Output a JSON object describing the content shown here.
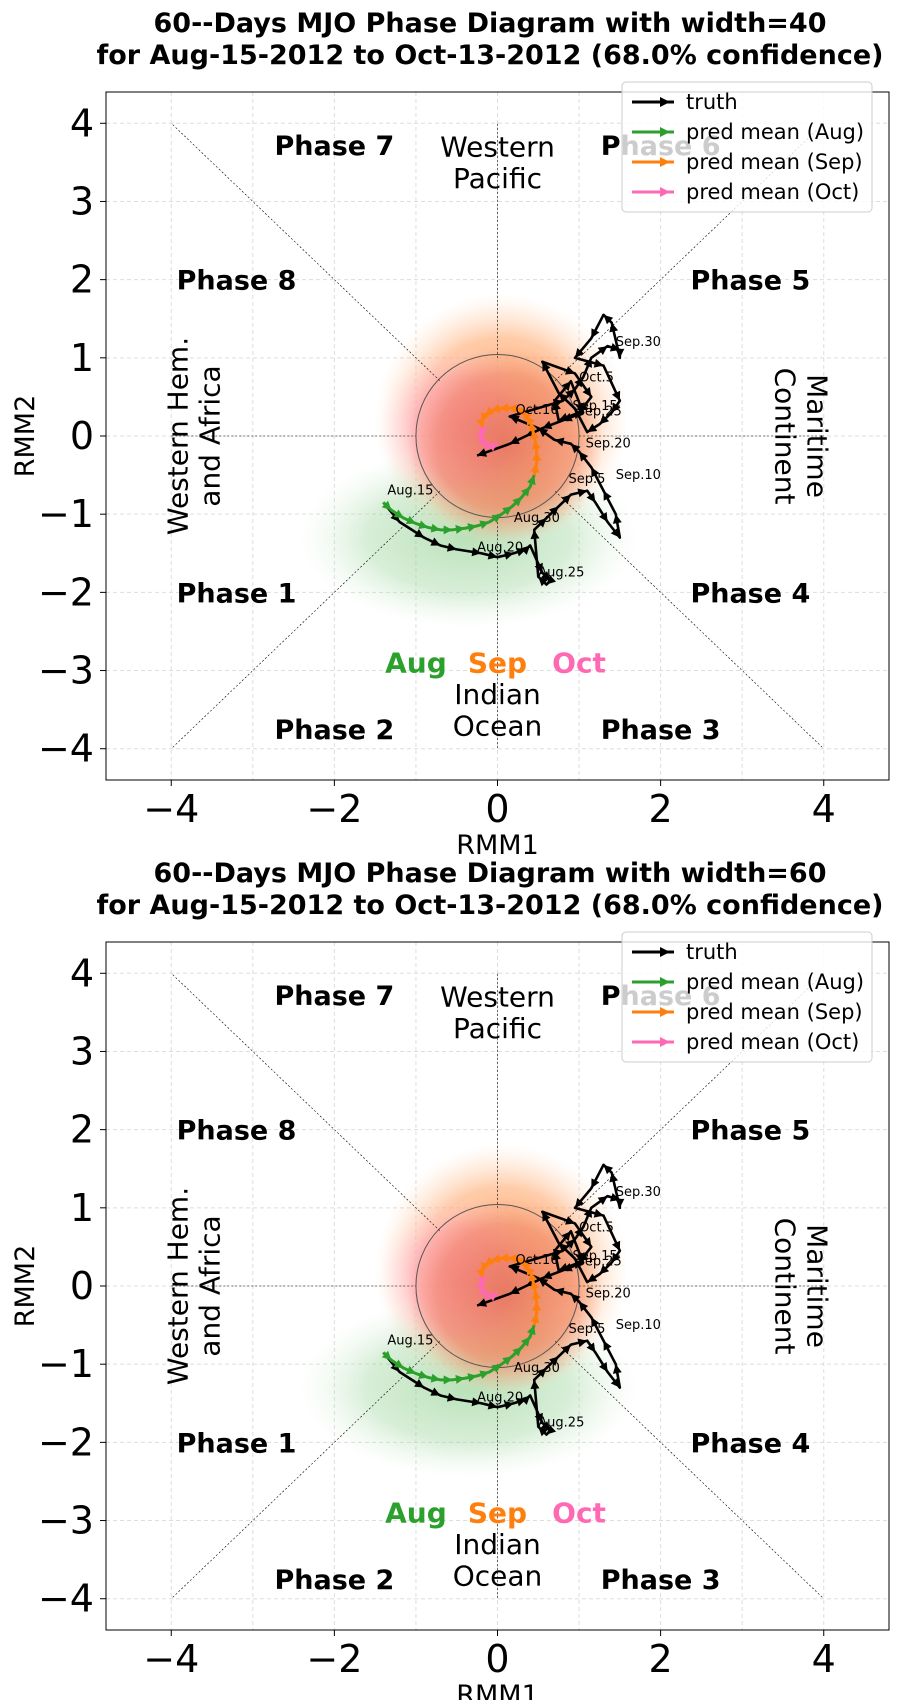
{
  "colors": {
    "truth": "#000000",
    "aug": "#2ca02c",
    "sep": "#ff7f0e",
    "oct": "#ff69b4"
  },
  "chart_data": [
    {
      "type": "line",
      "title_line1": "60--Days MJO Phase Diagram with width=40",
      "title_line2": "for Aug-15-2012 to Oct-13-2012 (68.0% confidence)",
      "xlabel": "RMM1",
      "ylabel": "RMM2",
      "xlim": [
        -4.8,
        4.8
      ],
      "ylim": [
        -4.4,
        4.4
      ],
      "xticks": [
        -4,
        -2,
        0,
        2,
        4
      ],
      "yticks": [
        -4,
        -3,
        -2,
        -1,
        0,
        1,
        2,
        3,
        4
      ],
      "xtick_labels": [
        "−4",
        "−2",
        "0",
        "2",
        "4"
      ],
      "ytick_labels": [
        "−4",
        "−3",
        "−2",
        "−1",
        "0",
        "1",
        "2",
        "3",
        "4"
      ],
      "grid": true,
      "legend_position": "top-right",
      "legend": [
        "truth",
        "pred mean (Aug)",
        "pred mean (Sep)",
        "pred mean (Oct)"
      ],
      "phases": [
        {
          "label": "Phase 1",
          "x": -3.2,
          "y": -2.0
        },
        {
          "label": "Phase 2",
          "x": -2.0,
          "y": -3.75
        },
        {
          "label": "Phase 3",
          "x": 2.0,
          "y": -3.75
        },
        {
          "label": "Phase 4",
          "x": 3.1,
          "y": -2.0
        },
        {
          "label": "Phase 5",
          "x": 3.1,
          "y": 2.0
        },
        {
          "label": "Phase 6",
          "x": 2.0,
          "y": 3.72
        },
        {
          "label": "Phase 7",
          "x": -2.0,
          "y": 3.72
        },
        {
          "label": "Phase 8",
          "x": -3.2,
          "y": 2.0
        }
      ],
      "regions": {
        "top_line1": "Western",
        "top_line2": "Pacific",
        "bottom_line1": "Indian",
        "bottom_line2": "Ocean",
        "left_line1": "Western Hem.",
        "left_line2": "and Africa",
        "right_line1": "Maritime",
        "right_line2": "Continent"
      },
      "month_labels": [
        "Aug",
        "Sep",
        "Oct"
      ],
      "series": [
        {
          "name": "truth",
          "x": [
            -1.4,
            -1.2,
            -0.9,
            -0.7,
            -0.5,
            -0.2,
            0.0,
            0.2,
            0.35,
            0.4,
            0.55,
            0.65,
            0.6,
            0.5,
            0.45,
            0.6,
            0.75,
            0.9,
            1.1,
            1.2,
            1.35,
            1.5,
            1.45,
            1.3,
            1.15,
            1.0,
            0.9,
            0.7,
            0.5,
            0.15,
            0.8,
            0.95,
            1.05,
            1.15,
            1.35,
            1.5,
            1.5,
            1.4,
            1.3,
            1.15,
            0.95,
            1.3,
            1.5,
            1.4,
            1.25,
            1.1,
            0.95,
            0.75,
            0.55,
            0.95,
            1.15,
            1.0,
            0.75,
            0.7,
            0.9,
            1.05,
            0.8,
            0.55,
            0.35,
            0.15,
            -0.25
          ],
          "y": [
            -0.85,
            -1.1,
            -1.3,
            -1.4,
            -1.45,
            -1.5,
            -1.55,
            -1.5,
            -1.45,
            -1.4,
            -1.75,
            -1.85,
            -1.9,
            -1.8,
            -1.2,
            -1.05,
            -0.9,
            -0.75,
            -0.7,
            -0.85,
            -1.1,
            -1.3,
            -1.0,
            -0.7,
            -0.4,
            -0.2,
            -0.1,
            -0.05,
            0.1,
            0.25,
            0.45,
            0.6,
            0.75,
            1.0,
            1.15,
            1.1,
            1.0,
            1.45,
            1.55,
            1.25,
            1.0,
            0.9,
            0.45,
            0.3,
            0.15,
            0.05,
            0.35,
            0.55,
            0.95,
            0.8,
            0.5,
            0.3,
            0.2,
            0.45,
            0.7,
            0.3,
            0.2,
            0.1,
            0.0,
            -0.1,
            -0.25
          ]
        },
        {
          "name": "pred mean (Aug)",
          "x": [
            -1.4,
            -1.3,
            -1.15,
            -1.0,
            -0.85,
            -0.7,
            -0.55,
            -0.4,
            -0.25,
            -0.1,
            0.05,
            0.18,
            0.3,
            0.4,
            0.45
          ],
          "y": [
            -0.85,
            -0.95,
            -1.05,
            -1.12,
            -1.17,
            -1.2,
            -1.2,
            -1.18,
            -1.15,
            -1.1,
            -1.0,
            -0.9,
            -0.78,
            -0.65,
            -0.5
          ]
        },
        {
          "name": "pred mean (Sep)",
          "x": [
            0.45,
            0.48,
            0.48,
            0.46,
            0.43,
            0.4,
            0.35,
            0.3,
            0.22,
            0.12,
            0.02,
            -0.08,
            -0.16,
            -0.2,
            -0.18
          ],
          "y": [
            -0.5,
            -0.35,
            -0.2,
            -0.05,
            0.08,
            0.18,
            0.26,
            0.32,
            0.35,
            0.36,
            0.35,
            0.32,
            0.26,
            0.18,
            0.1
          ]
        },
        {
          "name": "pred mean (Oct)",
          "x": [
            -0.18,
            -0.2,
            -0.18,
            -0.12,
            -0.05,
            0.0
          ],
          "y": [
            0.1,
            0.0,
            -0.07,
            -0.12,
            -0.12,
            -0.08
          ]
        }
      ],
      "date_labels": [
        {
          "text": "Aug.15",
          "x": -1.35,
          "y": -0.75
        },
        {
          "text": "Aug.20",
          "x": -0.25,
          "y": -1.48
        },
        {
          "text": "Aug.25",
          "x": 0.5,
          "y": -1.8
        },
        {
          "text": "Aug.30",
          "x": 0.2,
          "y": -1.1
        },
        {
          "text": "Sep.5",
          "x": 0.87,
          "y": -0.6
        },
        {
          "text": "Sep.10",
          "x": 1.45,
          "y": -0.55
        },
        {
          "text": "Sep.15",
          "x": 0.92,
          "y": 0.33
        },
        {
          "text": "Sep.20",
          "x": 1.08,
          "y": -0.15
        },
        {
          "text": "Sep.25",
          "x": 0.97,
          "y": 0.26
        },
        {
          "text": "Sep.30",
          "x": 1.45,
          "y": 1.15
        },
        {
          "text": "Oct.5",
          "x": 1.0,
          "y": 0.7
        },
        {
          "text": "Oct.10",
          "x": 0.22,
          "y": 0.28
        }
      ]
    },
    {
      "type": "line",
      "title_line1": "60--Days MJO Phase Diagram with width=60",
      "title_line2": "for Aug-15-2012 to Oct-13-2012 (68.0% confidence)",
      "xlabel": "RMM1",
      "ylabel": "RMM2",
      "xlim": [
        -4.8,
        4.8
      ],
      "ylim": [
        -4.4,
        4.4
      ],
      "xticks": [
        -4,
        -2,
        0,
        2,
        4
      ],
      "yticks": [
        -4,
        -3,
        -2,
        -1,
        0,
        1,
        2,
        3,
        4
      ],
      "xtick_labels": [
        "−4",
        "−2",
        "0",
        "2",
        "4"
      ],
      "ytick_labels": [
        "−4",
        "−3",
        "−2",
        "−1",
        "0",
        "1",
        "2",
        "3",
        "4"
      ],
      "grid": true,
      "legend_position": "top-right",
      "legend": [
        "truth",
        "pred mean (Aug)",
        "pred mean (Sep)",
        "pred mean (Oct)"
      ],
      "phases": [
        {
          "label": "Phase 1",
          "x": -3.2,
          "y": -2.0
        },
        {
          "label": "Phase 2",
          "x": -2.0,
          "y": -3.75
        },
        {
          "label": "Phase 3",
          "x": 2.0,
          "y": -3.75
        },
        {
          "label": "Phase 4",
          "x": 3.1,
          "y": -2.0
        },
        {
          "label": "Phase 5",
          "x": 3.1,
          "y": 2.0
        },
        {
          "label": "Phase 6",
          "x": 2.0,
          "y": 3.72
        },
        {
          "label": "Phase 7",
          "x": -2.0,
          "y": 3.72
        },
        {
          "label": "Phase 8",
          "x": -3.2,
          "y": 2.0
        }
      ],
      "regions": {
        "top_line1": "Western",
        "top_line2": "Pacific",
        "bottom_line1": "Indian",
        "bottom_line2": "Ocean",
        "left_line1": "Western Hem.",
        "left_line2": "and Africa",
        "right_line1": "Maritime",
        "right_line2": "Continent"
      },
      "month_labels": [
        "Aug",
        "Sep",
        "Oct"
      ],
      "series": [
        {
          "name": "truth",
          "x": [
            -1.4,
            -1.2,
            -0.9,
            -0.7,
            -0.5,
            -0.2,
            0.0,
            0.2,
            0.35,
            0.4,
            0.55,
            0.65,
            0.6,
            0.5,
            0.45,
            0.6,
            0.75,
            0.9,
            1.1,
            1.2,
            1.35,
            1.5,
            1.45,
            1.3,
            1.15,
            1.0,
            0.9,
            0.7,
            0.5,
            0.15,
            0.8,
            0.95,
            1.05,
            1.15,
            1.35,
            1.5,
            1.5,
            1.4,
            1.3,
            1.15,
            0.95,
            1.3,
            1.5,
            1.4,
            1.25,
            1.1,
            0.95,
            0.75,
            0.55,
            0.95,
            1.15,
            1.0,
            0.75,
            0.7,
            0.9,
            1.05,
            0.8,
            0.55,
            0.35,
            0.15,
            -0.25
          ],
          "y": [
            -0.85,
            -1.1,
            -1.3,
            -1.4,
            -1.45,
            -1.5,
            -1.55,
            -1.5,
            -1.45,
            -1.4,
            -1.75,
            -1.85,
            -1.9,
            -1.8,
            -1.2,
            -1.05,
            -0.9,
            -0.75,
            -0.7,
            -0.85,
            -1.1,
            -1.3,
            -1.0,
            -0.7,
            -0.4,
            -0.2,
            -0.1,
            -0.05,
            0.1,
            0.25,
            0.45,
            0.6,
            0.75,
            1.0,
            1.15,
            1.1,
            1.0,
            1.45,
            1.55,
            1.25,
            1.0,
            0.9,
            0.45,
            0.3,
            0.15,
            0.05,
            0.35,
            0.55,
            0.95,
            0.8,
            0.5,
            0.3,
            0.2,
            0.45,
            0.7,
            0.3,
            0.2,
            0.1,
            0.0,
            -0.1,
            -0.25
          ]
        },
        {
          "name": "pred mean (Aug)",
          "x": [
            -1.4,
            -1.3,
            -1.15,
            -1.0,
            -0.85,
            -0.7,
            -0.55,
            -0.4,
            -0.25,
            -0.1,
            0.05,
            0.18,
            0.3,
            0.4,
            0.45
          ],
          "y": [
            -0.85,
            -0.95,
            -1.05,
            -1.12,
            -1.17,
            -1.2,
            -1.2,
            -1.18,
            -1.15,
            -1.1,
            -1.0,
            -0.9,
            -0.78,
            -0.65,
            -0.5
          ]
        },
        {
          "name": "pred mean (Sep)",
          "x": [
            0.45,
            0.48,
            0.48,
            0.46,
            0.43,
            0.4,
            0.35,
            0.3,
            0.22,
            0.12,
            0.02,
            -0.08,
            -0.16,
            -0.2,
            -0.18
          ],
          "y": [
            -0.5,
            -0.35,
            -0.2,
            -0.05,
            0.08,
            0.18,
            0.26,
            0.32,
            0.35,
            0.36,
            0.35,
            0.32,
            0.26,
            0.18,
            0.1
          ]
        },
        {
          "name": "pred mean (Oct)",
          "x": [
            -0.18,
            -0.2,
            -0.18,
            -0.12,
            -0.05,
            0.0
          ],
          "y": [
            0.1,
            0.0,
            -0.07,
            -0.12,
            -0.12,
            -0.08
          ]
        }
      ],
      "date_labels": [
        {
          "text": "Aug.15",
          "x": -1.35,
          "y": -0.75
        },
        {
          "text": "Aug.20",
          "x": -0.25,
          "y": -1.48
        },
        {
          "text": "Aug.25",
          "x": 0.5,
          "y": -1.8
        },
        {
          "text": "Aug.30",
          "x": 0.2,
          "y": -1.1
        },
        {
          "text": "Sep.5",
          "x": 0.87,
          "y": -0.6
        },
        {
          "text": "Sep.10",
          "x": 1.45,
          "y": -0.55
        },
        {
          "text": "Sep.15",
          "x": 0.92,
          "y": 0.33
        },
        {
          "text": "Sep.20",
          "x": 1.08,
          "y": -0.15
        },
        {
          "text": "Sep.25",
          "x": 0.97,
          "y": 0.26
        },
        {
          "text": "Sep.30",
          "x": 1.45,
          "y": 1.15
        },
        {
          "text": "Oct.5",
          "x": 1.0,
          "y": 0.7
        },
        {
          "text": "Oct.10",
          "x": 0.22,
          "y": 0.28
        }
      ]
    }
  ]
}
